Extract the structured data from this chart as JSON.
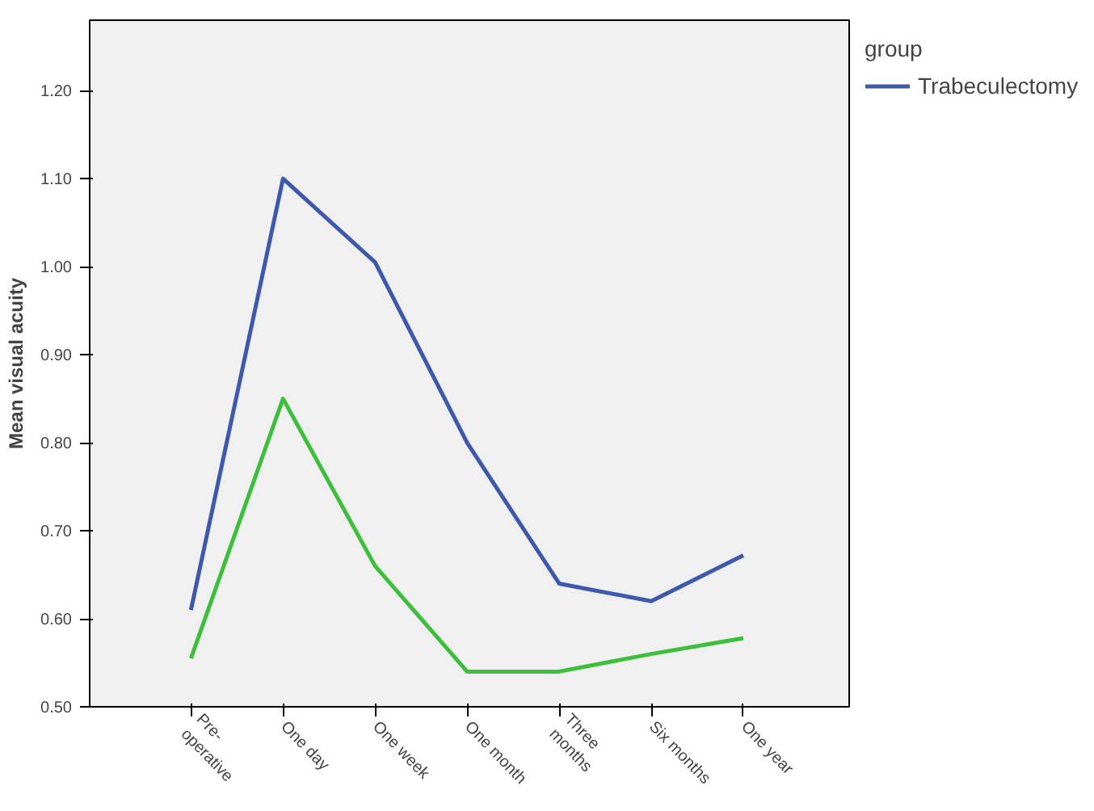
{
  "chart_data": {
    "type": "line",
    "ylabel": "Mean visual acuity",
    "legend_title": "group",
    "categories": [
      "Pre-\noperative",
      "One day",
      "One week",
      "One month",
      "Three\nmonths",
      "Six months",
      "One year"
    ],
    "series": [
      {
        "name": "Trabeculectomy",
        "color": "#3e58ac",
        "values": [
          0.61,
          1.1,
          1.005,
          0.8,
          0.64,
          0.62,
          0.672
        ]
      },
      {
        "color": "#3dbf3d",
        "values": [
          0.555,
          0.85,
          0.66,
          0.54,
          0.54,
          0.56,
          0.578
        ]
      }
    ],
    "ylim": [
      0.5,
      1.28
    ],
    "yticks": [
      {
        "value": 0.5,
        "label": "0.50"
      },
      {
        "value": 0.6,
        "label": "0.60"
      },
      {
        "value": 0.7,
        "label": "0.70"
      },
      {
        "value": 0.8,
        "label": "0.80"
      },
      {
        "value": 0.9,
        "label": "0.90"
      },
      {
        "value": 1.0,
        "label": "1.00"
      },
      {
        "value": 1.1,
        "label": "1.10"
      },
      {
        "value": 1.2,
        "label": "1.20"
      }
    ],
    "grid": false,
    "legend": "right",
    "marker": "none",
    "line_style": "solid"
  }
}
